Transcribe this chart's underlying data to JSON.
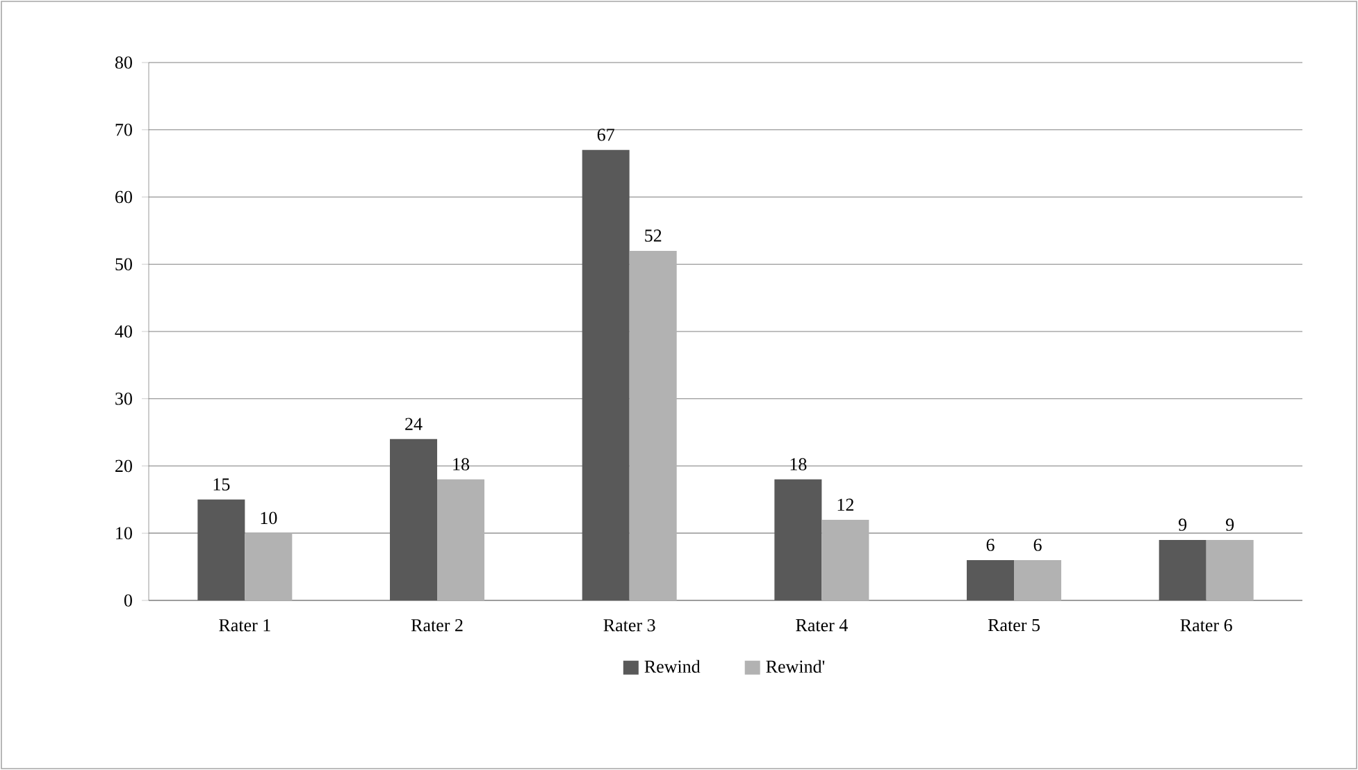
{
  "chart_data": {
    "type": "bar",
    "categories": [
      "Rater 1",
      "Rater 2",
      "Rater 3",
      "Rater 4",
      "Rater 5",
      "Rater 6"
    ],
    "series": [
      {
        "name": "Rewind",
        "color": "#595959",
        "values": [
          15,
          24,
          67,
          18,
          6,
          9
        ]
      },
      {
        "name": "Rewind'",
        "color": "#b2b2b2",
        "values": [
          10,
          18,
          52,
          12,
          6,
          9
        ]
      }
    ],
    "ylim": [
      0,
      80
    ],
    "yticks": [
      0,
      10,
      20,
      30,
      40,
      50,
      60,
      70,
      80
    ],
    "grid": "y",
    "legend": "bottom",
    "data_labels": true
  }
}
